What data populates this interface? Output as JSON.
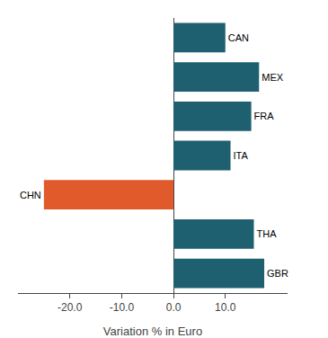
{
  "chart_data": {
    "type": "bar",
    "orientation": "horizontal",
    "categories": [
      "GBR",
      "THA",
      "CHN",
      "ITA",
      "FRA",
      "MEX",
      "CAN"
    ],
    "values": [
      17.5,
      15.5,
      -25.0,
      11.0,
      15.0,
      16.5,
      10.0
    ],
    "colors": [
      "#1f6070",
      "#1f6070",
      "#e05a2b",
      "#1f6070",
      "#1f6070",
      "#1f6070",
      "#1f6070"
    ],
    "xlabel": "Variation % in Euro",
    "xlim": [
      -30,
      22
    ],
    "xticks": [
      {
        "value": -20,
        "label": "-20.0"
      },
      {
        "value": -10,
        "label": "-10.0"
      },
      {
        "value": 0,
        "label": "0.0"
      },
      {
        "value": 10,
        "label": "10.0"
      }
    ],
    "grid": false,
    "tick_labels": "x"
  }
}
